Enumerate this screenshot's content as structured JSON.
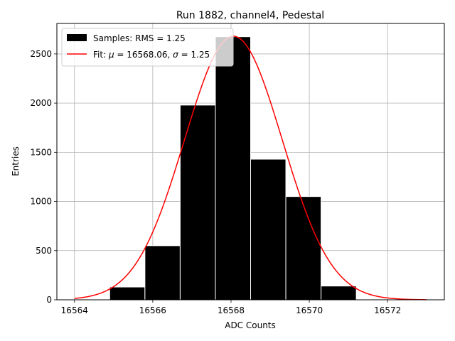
{
  "chart_data": {
    "type": "bar",
    "title": "Run 1882, channel4, Pedestal",
    "xlabel": "ADC Counts",
    "ylabel": "Entries",
    "xlim": [
      16563.55,
      16573.45
    ],
    "ylim": [
      0,
      2810
    ],
    "grid": true,
    "legend_position": "top-left",
    "xticks": [
      16564,
      16566,
      16568,
      16570,
      16572
    ],
    "yticks": [
      0,
      500,
      1000,
      1500,
      2000,
      2500
    ],
    "histogram": {
      "name": "Samples: RMS = 1.25",
      "color": "#000000",
      "edge_color": "#ffffff",
      "bins": [
        {
          "x0": 16564.9,
          "x1": 16565.8,
          "count": 130
        },
        {
          "x0": 16565.8,
          "x1": 16566.7,
          "count": 550
        },
        {
          "x0": 16566.7,
          "x1": 16567.6,
          "count": 1980
        },
        {
          "x0": 16567.6,
          "x1": 16568.5,
          "count": 2675
        },
        {
          "x0": 16568.5,
          "x1": 16569.4,
          "count": 1430
        },
        {
          "x0": 16569.4,
          "x1": 16570.3,
          "count": 1050
        },
        {
          "x0": 16570.3,
          "x1": 16571.2,
          "count": 140
        }
      ]
    },
    "fit": {
      "name_prefix": "Fit: ",
      "mu_value": "16568.06",
      "sigma_value": "1.25",
      "color": "#ff0000",
      "mu": 16568.06,
      "sigma": 1.25,
      "amplitude": 2680,
      "x_range": [
        16564,
        16573
      ]
    }
  }
}
